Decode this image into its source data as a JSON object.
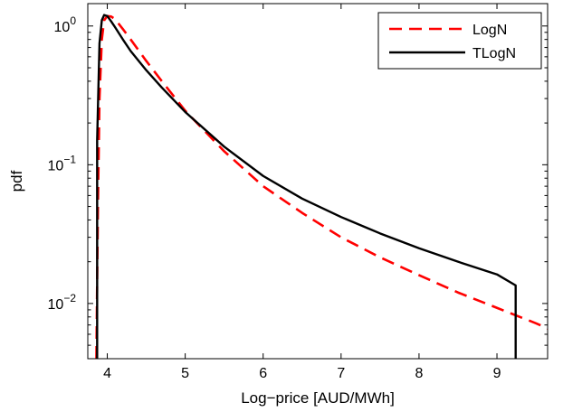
{
  "chart_data": {
    "type": "line",
    "title": "",
    "xlabel": "Log−price [AUD/MWh]",
    "ylabel": "pdf",
    "xlim": [
      3.75,
      9.65
    ],
    "ylim": [
      0.004,
      1.45
    ],
    "yscale": "log",
    "grid": false,
    "legend_position": "top-right",
    "x_ticks": [
      4,
      5,
      6,
      7,
      8,
      9
    ],
    "x_tick_labels": [
      "4",
      "5",
      "6",
      "7",
      "8",
      "9"
    ],
    "y_ticks": [
      0.01,
      0.1,
      1
    ],
    "y_tick_labels": [
      {
        "base": "10",
        "exp": "−2"
      },
      {
        "base": "10",
        "exp": "−1"
      },
      {
        "base": "10",
        "exp": "0"
      }
    ],
    "series": [
      {
        "name": "LogN",
        "color": "#ff0000",
        "style": "dashed",
        "x": [
          3.86,
          3.88,
          3.9,
          3.93,
          3.96,
          4.0,
          4.05,
          4.1,
          4.2,
          4.3,
          4.5,
          4.7,
          5.0,
          5.5,
          6.0,
          6.5,
          7.0,
          7.5,
          8.0,
          8.5,
          9.0,
          9.5,
          9.65
        ],
        "y": [
          0.004,
          0.05,
          0.3,
          0.8,
          1.1,
          1.18,
          1.17,
          1.12,
          0.95,
          0.8,
          0.56,
          0.4,
          0.245,
          0.125,
          0.07,
          0.045,
          0.03,
          0.0215,
          0.016,
          0.012,
          0.0093,
          0.0072,
          0.0066
        ]
      },
      {
        "name": "TLogN",
        "color": "#000000",
        "style": "solid",
        "x": [
          3.87,
          3.87,
          3.9,
          3.93,
          3.96,
          4.0,
          4.05,
          4.1,
          4.2,
          4.3,
          4.5,
          4.7,
          5.0,
          5.5,
          6.0,
          6.5,
          7.0,
          7.5,
          8.0,
          8.5,
          9.0,
          9.24,
          9.24
        ],
        "y": [
          0.004,
          0.15,
          0.75,
          1.1,
          1.2,
          1.18,
          1.08,
          0.98,
          0.8,
          0.66,
          0.48,
          0.36,
          0.24,
          0.135,
          0.083,
          0.057,
          0.042,
          0.032,
          0.025,
          0.02,
          0.0162,
          0.0135,
          0.004
        ]
      }
    ]
  }
}
